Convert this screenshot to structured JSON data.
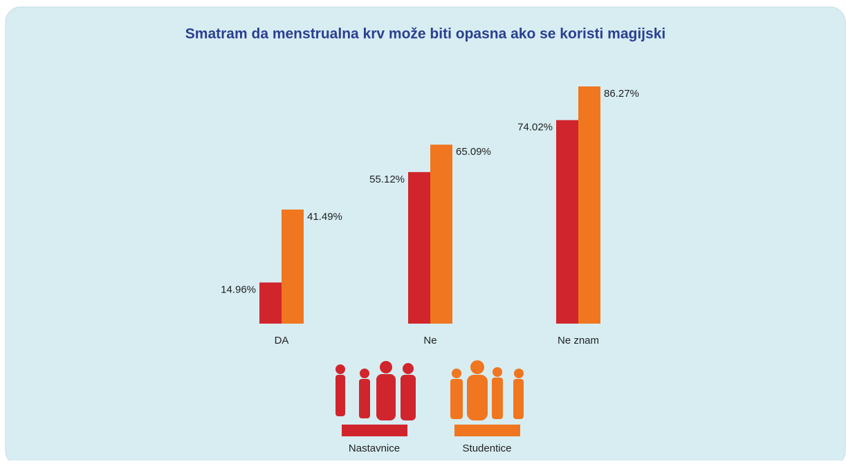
{
  "chart_data": {
    "type": "bar",
    "title": "Smatram da menstrualna krv može biti opasna ako se koristi magijski",
    "categories": [
      "DA",
      "Ne",
      "Ne znam"
    ],
    "series": [
      {
        "name": "Nastavnice",
        "color": "#d0252c",
        "values": [
          14.96,
          55.12,
          74.02
        ],
        "value_labels": [
          "14.96%",
          "55.12%",
          "74.02%"
        ]
      },
      {
        "name": "Studentice",
        "color": "#f07620",
        "values": [
          41.49,
          65.09,
          86.27
        ],
        "value_labels": [
          "41.49%",
          "65.09%",
          "86.27%"
        ]
      }
    ]
  }
}
